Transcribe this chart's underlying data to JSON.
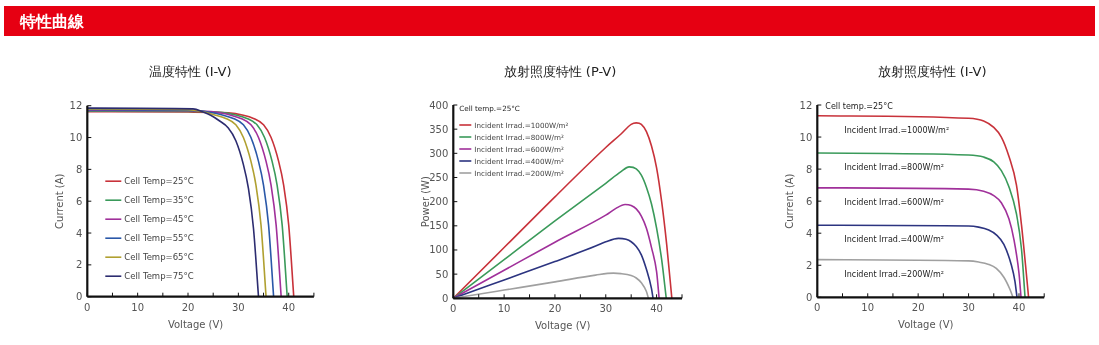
{
  "chart_data": [
    {
      "type": "other",
      "title": "特性曲線"
    },
    {
      "type": "line",
      "title": "温度特性 (I-V)",
      "xlabel": "Voltage (V)",
      "ylabel": "Current (A)",
      "legend": "left",
      "xlim": [
        0,
        45
      ],
      "ylim": [
        0,
        12
      ],
      "xticks": [
        0,
        {
          "value": 5,
          "label": null
        },
        10,
        {
          "value": 15,
          "label": null
        },
        20,
        {
          "value": 25,
          "label": null
        },
        30,
        {
          "value": 35,
          "label": null
        },
        40,
        {
          "value": 45,
          "label": null
        }
      ],
      "yticks": [
        0,
        2,
        4,
        6,
        8,
        10,
        12
      ],
      "series": [
        {
          "name": "Cell Temp=25°C",
          "color": "#c8323a",
          "x": [
            0,
            20,
            28,
            31,
            33,
            35,
            36.5,
            38,
            39,
            40,
            41
          ],
          "values": [
            11.62,
            11.6,
            11.55,
            11.4,
            11.2,
            10.8,
            10.0,
            8.5,
            7,
            4.5,
            0
          ]
        },
        {
          "name": "Cell Temp=35°C",
          "color": "#3a9a5a",
          "x": [
            0,
            20,
            26.5,
            29.7,
            31.7,
            33.7,
            35.2,
            36.7,
            37.7,
            38.7,
            39.7
          ],
          "values": [
            11.66,
            11.64,
            11.58,
            11.4,
            11.2,
            10.8,
            10,
            8.5,
            7,
            4.5,
            0
          ]
        },
        {
          "name": "Cell Temp=45°C",
          "color": "#a0309a",
          "x": [
            0,
            20,
            25.5,
            28.5,
            30.5,
            32.5,
            34,
            35.5,
            36.5,
            37.5,
            38.5
          ],
          "values": [
            11.7,
            11.68,
            11.6,
            11.4,
            11.2,
            10.8,
            10,
            8.5,
            7,
            4.5,
            0
          ]
        },
        {
          "name": "Cell Temp=55°C",
          "color": "#2a58a8",
          "x": [
            0,
            20,
            24,
            27,
            29,
            31,
            32.5,
            34,
            35,
            36,
            37
          ],
          "values": [
            11.75,
            11.72,
            11.6,
            11.4,
            11.2,
            10.8,
            10,
            8.5,
            7,
            4.5,
            0
          ]
        },
        {
          "name": "Cell Temp=65°C",
          "color": "#b0a030",
          "x": [
            0,
            20,
            22.5,
            25.5,
            27.5,
            29.5,
            31,
            32.5,
            33.5,
            34.5,
            35.5
          ],
          "values": [
            11.8,
            11.75,
            11.65,
            11.4,
            11.2,
            10.8,
            10,
            8.5,
            7,
            4.5,
            0
          ]
        },
        {
          "name": "Cell Temp=75°C",
          "color": "#2c2c70",
          "x": [
            0,
            21,
            23,
            24.5,
            26,
            28,
            29.5,
            31,
            32,
            33,
            34
          ],
          "values": [
            11.85,
            11.8,
            11.6,
            11.4,
            11.1,
            10.6,
            9.8,
            8.3,
            6.8,
            4.3,
            0
          ]
        }
      ]
    },
    {
      "type": "line",
      "title": "放射照度特性 (P-V)",
      "xlabel": "Voltage (V)",
      "ylabel": "Power (W)",
      "legend": "top left",
      "legend_title": "Cell temp.=25°C",
      "xlim": [
        0,
        45
      ],
      "ylim": [
        0,
        400
      ],
      "xticks": [
        0,
        {
          "value": 5,
          "label": null
        },
        10,
        {
          "value": 15,
          "label": null
        },
        20,
        {
          "value": 25,
          "label": null
        },
        30,
        {
          "value": 35,
          "label": null
        },
        40,
        {
          "value": 45,
          "label": null
        }
      ],
      "yticks": [
        0,
        50,
        100,
        150,
        200,
        250,
        300,
        350,
        400
      ],
      "series": [
        {
          "name": "Incident Irrad.=1000W/m²",
          "color": "#c8323a",
          "x": [
            0,
            10,
            20,
            30,
            33,
            35,
            36,
            37,
            38,
            39,
            40,
            41,
            42,
            43
          ],
          "values": [
            0,
            105,
            210,
            312,
            340,
            360,
            363,
            360,
            345,
            315,
            270,
            200,
            110,
            0
          ]
        },
        {
          "name": "Incident Irrad.=800W/m²",
          "color": "#3a9a5a",
          "x": [
            0,
            10,
            20,
            30,
            33,
            34.6,
            36,
            37,
            38,
            39,
            40,
            41,
            41.9
          ],
          "values": [
            0,
            80,
            160,
            238,
            262,
            272,
            268,
            255,
            230,
            195,
            145,
            80,
            0
          ]
        },
        {
          "name": "Incident Irrad.=600W/m²",
          "color": "#a0309a",
          "x": [
            0,
            10,
            20,
            30,
            32,
            33.8,
            35,
            36,
            37,
            38,
            39,
            40,
            40.5
          ],
          "values": [
            0,
            58,
            116,
            172,
            186,
            194,
            192,
            185,
            170,
            145,
            105,
            55,
            0
          ]
        },
        {
          "name": "Incident Irrad.=400W/m²",
          "color": "#2c3480",
          "x": [
            0,
            10,
            20,
            28,
            30,
            32.5,
            34,
            35,
            36,
            37,
            38,
            39,
            39.3
          ],
          "values": [
            0,
            38,
            76,
            108,
            117,
            124,
            122,
            117,
            107,
            90,
            60,
            20,
            0
          ]
        },
        {
          "name": "Incident Irrad.=200W/m²",
          "color": "#a0a0a0",
          "x": [
            0,
            10,
            20,
            28,
            31.5,
            33,
            35,
            36,
            37,
            38,
            38.4
          ],
          "values": [
            0,
            17,
            34,
            48,
            52,
            51,
            47,
            42,
            32,
            14,
            0
          ]
        }
      ]
    },
    {
      "type": "line",
      "title": "放射照度特性 (I-V)",
      "xlabel": "Voltage (V)",
      "ylabel": "Current (A)",
      "legend": false,
      "annotations": [
        "Cell temp.=25°C"
      ],
      "xlim": [
        0,
        45
      ],
      "ylim": [
        0,
        12
      ],
      "xticks": [
        0,
        {
          "value": 5,
          "label": null
        },
        10,
        {
          "value": 15,
          "label": null
        },
        20,
        {
          "value": 25,
          "label": null
        },
        30,
        {
          "value": 35,
          "label": null
        },
        40,
        {
          "value": 45,
          "label": null
        }
      ],
      "yticks": [
        0,
        2,
        4,
        6,
        8,
        10,
        12
      ],
      "series": [
        {
          "name": "Incident Irrad.=1000W/m²",
          "color": "#c8323a",
          "x": [
            0,
            30,
            33,
            35,
            36.5,
            38,
            39.5,
            40.5,
            41.3,
            41.9
          ],
          "values": [
            11.33,
            11.17,
            11.0,
            10.6,
            10.0,
            8.8,
            7,
            4.5,
            2,
            0
          ]
        },
        {
          "name": "Incident Irrad.=800W/m²",
          "color": "#3a9a5a",
          "x": [
            0,
            30,
            33,
            35,
            36.5,
            38,
            39.5,
            40.5,
            41.2
          ],
          "values": [
            9.0,
            8.88,
            8.75,
            8.45,
            7.9,
            6.9,
            5.2,
            3,
            0
          ]
        },
        {
          "name": "Incident Irrad.=600W/m²",
          "color": "#a0309a",
          "x": [
            0,
            30,
            33,
            35,
            36.5,
            38,
            39,
            40,
            40.4
          ],
          "values": [
            6.83,
            6.75,
            6.62,
            6.35,
            5.9,
            4.9,
            3.6,
            1.5,
            0
          ]
        },
        {
          "name": "Incident Irrad.=400W/m²",
          "color": "#2c3480",
          "x": [
            0,
            30,
            32,
            34,
            35.5,
            37,
            38.5,
            39.2,
            39.6
          ],
          "values": [
            4.5,
            4.45,
            4.38,
            4.2,
            3.9,
            3.3,
            2.0,
            1.0,
            0
          ]
        },
        {
          "name": "Incident Irrad.=200W/m²",
          "color": "#a0a0a0",
          "x": [
            0,
            30,
            32,
            34,
            35.5,
            37,
            38.2,
            38.8
          ],
          "values": [
            2.35,
            2.27,
            2.2,
            2.05,
            1.8,
            1.25,
            0.5,
            0
          ]
        }
      ]
    }
  ]
}
